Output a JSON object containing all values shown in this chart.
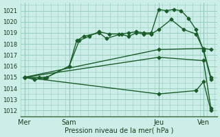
{
  "xlabel": "Pression niveau de la mer( hPa )",
  "bg_color": "#cceee8",
  "grid_color": "#99ccbb",
  "line_color": "#1a5c2a",
  "ylim": [
    1011.5,
    1021.7
  ],
  "yticks": [
    1012,
    1013,
    1014,
    1015,
    1016,
    1017,
    1018,
    1019,
    1020,
    1021
  ],
  "xtick_labels": [
    "Mer",
    "Sam",
    "Jeu",
    "Ven"
  ],
  "xtick_positions": [
    0,
    36,
    108,
    144
  ],
  "vlines": [
    0,
    36,
    108,
    144
  ],
  "xlim": [
    -3,
    155
  ],
  "series": [
    {
      "x": [
        0,
        12,
        18,
        36,
        42,
        48,
        60,
        66,
        78,
        84,
        90,
        96,
        102,
        108,
        114,
        120,
        126,
        132,
        138,
        144,
        150
      ],
      "y": [
        1015.0,
        1015.0,
        1015.0,
        1016.0,
        1018.3,
        1018.7,
        1019.0,
        1018.5,
        1018.9,
        1019.0,
        1019.1,
        1019.0,
        1019.0,
        1021.1,
        1021.0,
        1021.1,
        1021.0,
        1020.3,
        1019.3,
        1017.4,
        1014.8
      ]
    },
    {
      "x": [
        0,
        8,
        16,
        36,
        44,
        52,
        60,
        68,
        76,
        84,
        90,
        96,
        102,
        108,
        118,
        128,
        138,
        144,
        150
      ],
      "y": [
        1015.0,
        1014.8,
        1014.9,
        1016.0,
        1018.3,
        1018.7,
        1019.1,
        1018.9,
        1018.9,
        1018.7,
        1019.0,
        1018.9,
        1018.9,
        1019.3,
        1020.2,
        1019.3,
        1018.9,
        1017.5,
        1015.0
      ]
    },
    {
      "x": [
        0,
        108,
        144,
        150
      ],
      "y": [
        1015.0,
        1017.5,
        1017.6,
        1017.5
      ]
    },
    {
      "x": [
        0,
        108,
        144,
        150
      ],
      "y": [
        1015.0,
        1016.8,
        1016.5,
        1012.2
      ]
    },
    {
      "x": [
        0,
        108,
        138,
        144,
        150
      ],
      "y": [
        1015.0,
        1013.5,
        1013.8,
        1014.6,
        1012.0
      ]
    }
  ]
}
